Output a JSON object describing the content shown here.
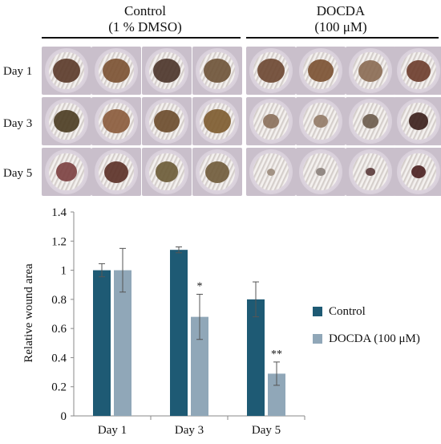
{
  "header": {
    "control_line1": "Control",
    "control_line2": "(1 % DMSO)",
    "treated_line1": "DOCDA",
    "treated_line2": "(100 μM)"
  },
  "rows": [
    "Day 1",
    "Day 3",
    "Day 5"
  ],
  "colors": {
    "control": "#1e5a74",
    "docda": "#90a7b8",
    "axis": "#8a8a8a",
    "text": "#111111"
  },
  "chart_data": {
    "type": "bar",
    "categories": [
      "Day 1",
      "Day 3",
      "Day 5"
    ],
    "series": [
      {
        "name": "Control",
        "values": [
          1.0,
          1.14,
          0.8
        ],
        "errors": [
          0.045,
          0.02,
          0.12
        ],
        "sig": [
          "",
          "",
          ""
        ]
      },
      {
        "name": "DOCDA (100 μM)",
        "values": [
          1.0,
          0.68,
          0.29
        ],
        "errors": [
          0.15,
          0.155,
          0.08
        ],
        "sig": [
          "",
          "*",
          "**"
        ]
      }
    ],
    "ylabel": "Relative wound  area",
    "xlabel": "",
    "ylim": [
      0,
      1.4
    ],
    "yticks": [
      "0",
      "0.2",
      "0.4",
      "0.6",
      "0.8",
      "1",
      "1.2",
      "1.4"
    ],
    "legend": "right",
    "grid": false
  }
}
